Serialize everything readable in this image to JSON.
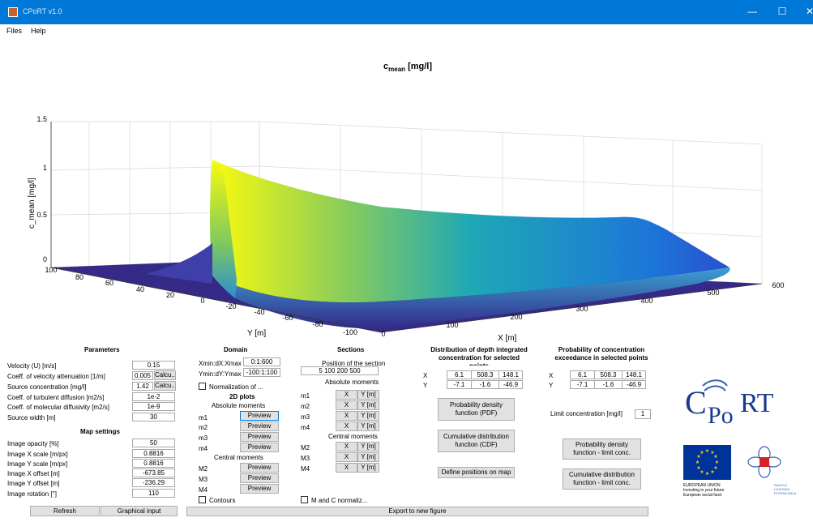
{
  "window": {
    "title": "CPoRT v1.0",
    "minimize_glyph": "—",
    "maximize_glyph": "☐",
    "close_glyph": "✕"
  },
  "menu": {
    "files": "Files",
    "help": "Help"
  },
  "plot": {
    "title_main": "c",
    "title_sub": "mean",
    "title_unit": " [mg/l]",
    "zlabel": "c_mean [mg/l]",
    "xlabel": "X [m]",
    "ylabel": "Y [m]",
    "ztick_labels": [
      "1.5",
      "1",
      "0.5",
      "0"
    ],
    "xtick_labels": [
      "0",
      "100",
      "200",
      "300",
      "400",
      "500",
      "600"
    ],
    "ytick_labels": [
      "100",
      "80",
      "60",
      "40",
      "20",
      "0",
      "-20",
      "-40",
      "-60",
      "-80",
      "-100"
    ]
  },
  "chart_data": {
    "type": "surface",
    "title": "c_mean [mg/l]",
    "xlabel": "X [m]",
    "ylabel": "Y [m]",
    "zlabel": "c_mean [mg/l]",
    "xlim": [
      0,
      600
    ],
    "ylim": [
      -100,
      100
    ],
    "zlim": [
      0,
      1.5
    ],
    "grid": true,
    "colormap": "parula"
  },
  "parameters": {
    "heading": "Parameters",
    "velocity_label": "Velocity (U) [m/s]",
    "velocity_value": "0.15",
    "attenuation_label": "Coeff. of velocity attenuation [1/m]",
    "attenuation_value": "0.005",
    "attenuation_button": "Calcu...",
    "source_conc_label": "Source concentration [mg/l]",
    "source_conc_value": "1.42",
    "source_conc_button": "Calcu...",
    "turb_label": "Coeff. of turbulent diffusion [m2/s]",
    "turb_value": "1e-2",
    "mol_label": "Coeff. of molecular diffusivity [m2/s]",
    "mol_value": "1e-9",
    "width_label": "Source width [m]",
    "width_value": "30"
  },
  "map_settings": {
    "heading": "Map settings",
    "opacity_label": "Image opacity [%]",
    "opacity_value": "50",
    "xscale_label": "Image X scale [m/px]",
    "xscale_value": "0.8816",
    "yscale_label": "Image Y scale [m/px]",
    "yscale_value": "0.8816",
    "xoffset_label": "Image X offset [m]",
    "xoffset_value": "-673.85",
    "yoffset_label": "Image Y offset [m]",
    "yoffset_value": "-236.29",
    "rotation_label": "Image rotation  [°]",
    "rotation_value": "110",
    "refresh_button": "Refresh",
    "graphical_input_button": "Graphical input"
  },
  "domain": {
    "heading": "Domain",
    "xrange_label": "Xmin:dX:Xmax",
    "xrange_value": "0:1:600",
    "yrange_label": "Ymin:dY:Ymax",
    "yrange_value": "-100:1:100",
    "normalization_label": "Normalization of ...",
    "plots_heading": "2D plots",
    "absolute_moments": "Absolute moments",
    "central_moments": "Central moments",
    "preview": "Preview",
    "m1": "m1",
    "m2": "m2",
    "m3": "m3",
    "m4": "m4",
    "M2": "M2",
    "M3": "M3",
    "M4": "M4",
    "contours_label": "Contours"
  },
  "sections": {
    "heading": "Sections",
    "position_label": "Position of the section",
    "position_value": "5  100  200  500",
    "absolute_moments": "Absolute moments",
    "central_moments": "Central moments",
    "x_btn": "X",
    "y_btn": "Y [m]",
    "m1": "m1",
    "m2": "m2",
    "m3": "m3",
    "m4": "m4",
    "M2": "M2",
    "M3": "M3",
    "M4": "M4",
    "mc_normaliz_label": "M and C normaliz..."
  },
  "distribution": {
    "heading_l1": "Distribution of depth integrated",
    "heading_l2": "concentration for selected",
    "heading_l3": "points",
    "x_label": "X",
    "y_label": "Y",
    "x_values": [
      "6.1",
      "508.3",
      "148.1"
    ],
    "y_values": [
      "-7.1",
      "-1.6",
      "-46.9"
    ],
    "pdf_button_l1": "Probability density",
    "pdf_button_l2": "function (PDF)",
    "cdf_button_l1": "Cumulative distribution",
    "cdf_button_l2": "function (CDF)",
    "define_positions_button": "Define positions on map"
  },
  "exceedance": {
    "heading_l1": "Probability of concentration",
    "heading_l2": "exceedance in selected points",
    "x_label": "X",
    "y_label": "Y",
    "x_values": [
      "6.1",
      "508.3",
      "148.1"
    ],
    "y_values": [
      "-7.1",
      "-1.6",
      "-46.9"
    ],
    "limit_label": "Limit concentration [mg/l]",
    "limit_value": "1",
    "pdf_button_l1": "Probability density",
    "pdf_button_l2": "function - limit conc.",
    "cdf_button_l1": "Cumulative distribution",
    "cdf_button_l2": "function - limit conc."
  },
  "export_button": "Export to new  figure",
  "logos": {
    "cport_c": "C",
    "cport_po": "Po",
    "cport_rt": "RT",
    "eu_l1": "EUROPEAN UNION",
    "eu_l2": "Investing in your future",
    "eu_l3": "European social fund",
    "hr_l1": "RAZVOJ",
    "hr_l2": "LJUDSKIH",
    "hr_l3": "POTENCIJALA"
  },
  "colors": {
    "titlebar": "#0078d7",
    "surface_low": "#352a87",
    "surface_mid": "#1fa8b5",
    "surface_high": "#f9fb0e",
    "logo_blue": "#1a3a8c",
    "eu_flag": "#003399"
  }
}
